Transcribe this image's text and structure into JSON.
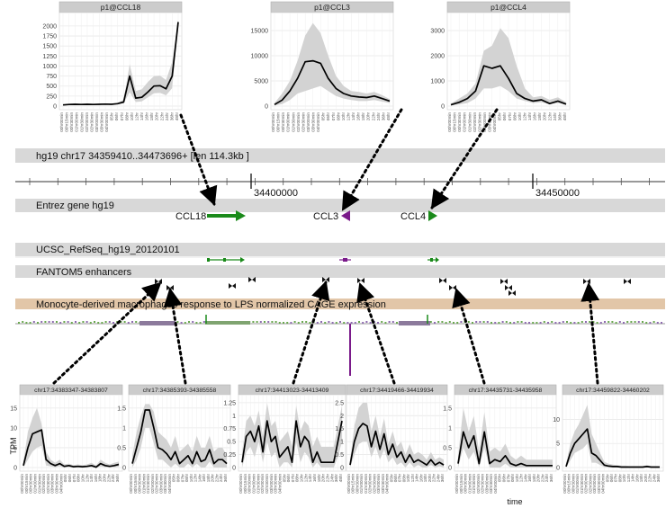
{
  "track_header": "hg19 chr17 34359410..34473696+ [len 114.3kb ]",
  "ruler": {
    "labels": [
      "34400000",
      "34450000"
    ]
  },
  "tracks": {
    "entrez": "Entrez gene hg19",
    "refseq": "UCSC_RefSeq_hg19_20120101",
    "enhancers": "FANTOM5 enhancers",
    "cage": "Monocyte-derived macrophages response to LPS normalized CAGE expression"
  },
  "genes": [
    {
      "name": "CCL18",
      "strand": "+"
    },
    {
      "name": "CCL3",
      "strand": "-"
    },
    {
      "name": "CCL4",
      "strand": "+"
    }
  ],
  "time_labels": [
    "00hr00min",
    "00hr15min",
    "00hr30min",
    "01hr00min",
    "01hr30min",
    "02hr00min",
    "02hr30min",
    "03hr00min",
    "03hr30min",
    "04hr00min",
    "05hr",
    "06hr",
    "07hr",
    "08hr",
    "10hr",
    "12hr",
    "14hr",
    "16hr",
    "18hr",
    "20hr",
    "22hr",
    "24hr",
    "36hr",
    "48hr"
  ],
  "common_axes": {
    "ylabel": "TPM",
    "xlabel": "time"
  },
  "chart_data": [
    {
      "type": "line",
      "title": "p1@CCL18",
      "yticks": [
        0,
        250,
        500,
        750,
        1000,
        1250,
        1500,
        1750,
        2000
      ],
      "ylim": [
        0,
        2200
      ],
      "values": [
        30,
        40,
        45,
        40,
        45,
        40,
        45,
        50,
        45,
        60,
        100,
        750,
        200,
        220,
        350,
        500,
        510,
        430,
        750,
        2100
      ],
      "band_low": [
        20,
        30,
        35,
        30,
        35,
        30,
        35,
        40,
        35,
        45,
        70,
        350,
        100,
        120,
        220,
        320,
        330,
        270,
        450,
        2050
      ],
      "band_high": [
        45,
        55,
        60,
        55,
        60,
        55,
        60,
        65,
        60,
        80,
        160,
        1050,
        380,
        420,
        600,
        750,
        760,
        650,
        1100,
        2150
      ]
    },
    {
      "type": "line",
      "title": "p1@CCL3",
      "yticks": [
        0,
        5000,
        10000,
        15000
      ],
      "ylim": [
        0,
        17500
      ],
      "values": [
        300,
        1200,
        3000,
        5500,
        8800,
        9000,
        8500,
        5500,
        3500,
        2500,
        2000,
        1800,
        1700,
        2000,
        1500,
        1000
      ],
      "band_low": [
        100,
        400,
        1200,
        2500,
        3000,
        3500,
        4000,
        3000,
        2000,
        1500,
        1200,
        1000,
        1000,
        1200,
        900,
        600
      ],
      "band_high": [
        600,
        2500,
        5000,
        9000,
        14000,
        16500,
        14500,
        10000,
        6000,
        4000,
        3000,
        2800,
        2500,
        2800,
        2200,
        1400
      ]
    },
    {
      "type": "line",
      "title": "p1@CCL4",
      "yticks": [
        0,
        1000,
        2000,
        3000
      ],
      "ylim": [
        0,
        3500
      ],
      "values": [
        50,
        150,
        300,
        600,
        1600,
        1500,
        1600,
        1100,
        500,
        300,
        200,
        250,
        100,
        200,
        80
      ],
      "band_low": [
        20,
        60,
        120,
        300,
        700,
        700,
        800,
        600,
        300,
        200,
        120,
        150,
        60,
        120,
        40
      ],
      "band_high": [
        100,
        300,
        500,
        900,
        2200,
        2400,
        3100,
        2700,
        1600,
        700,
        350,
        400,
        250,
        350,
        150
      ]
    },
    {
      "type": "line",
      "title": "chr17:34383347-34383807",
      "yticks": [
        0,
        5,
        10,
        15
      ],
      "ylim": [
        0,
        17
      ],
      "values": [
        0.5,
        5,
        8.5,
        9,
        9.5,
        2,
        1,
        0.5,
        1,
        0.3,
        0.5,
        0.2,
        0.3,
        0.2,
        0.3,
        0.5,
        0.1,
        1,
        0.5,
        0.3,
        0.5,
        0.8
      ],
      "band_low": [
        0,
        2,
        4,
        5,
        5.5,
        0.5,
        0.3,
        0.1,
        0.3,
        0,
        0.1,
        0,
        0.1,
        0,
        0.1,
        0.1,
        0,
        0.3,
        0.1,
        0.1,
        0.1,
        0.2
      ],
      "band_high": [
        1.5,
        9,
        12.5,
        15,
        11,
        4,
        2,
        1.2,
        2,
        0.8,
        1,
        0.6,
        0.8,
        0.6,
        0.8,
        1.2,
        0.5,
        2,
        1.2,
        0.8,
        1.2,
        1.5
      ]
    },
    {
      "type": "line",
      "title": "chr17:34385393-34385558",
      "yticks": [
        0,
        0.5,
        1,
        1.5
      ],
      "ylim": [
        0,
        1.7
      ],
      "values": [
        0.1,
        0.5,
        0.9,
        1.45,
        1.45,
        1.0,
        0.5,
        0.45,
        0.35,
        0.2,
        0.4,
        0.1,
        0.2,
        0.3,
        0.1,
        0.4,
        0.15,
        0.2,
        0.45,
        0.1,
        0.2,
        0.2,
        0.1
      ],
      "band_low": [
        0,
        0.2,
        0.5,
        1.0,
        1.0,
        0.6,
        0.2,
        0.2,
        0.1,
        0,
        0.1,
        0,
        0,
        0.1,
        0,
        0.1,
        0,
        0,
        0.15,
        0,
        0,
        0,
        0
      ],
      "band_high": [
        0.3,
        0.9,
        1.3,
        1.6,
        1.6,
        1.4,
        0.9,
        0.8,
        0.7,
        0.5,
        0.8,
        0.4,
        0.5,
        0.6,
        0.4,
        0.8,
        0.5,
        0.5,
        0.8,
        0.4,
        0.5,
        0.5,
        0.3
      ]
    },
    {
      "type": "line",
      "title": "chr17:34413023-34413409",
      "yticks": [
        0,
        0.25,
        0.5,
        0.75,
        1,
        1.25
      ],
      "ylim": [
        0,
        1.3
      ],
      "values": [
        0.1,
        0.6,
        0.7,
        0.5,
        0.8,
        0.3,
        0.9,
        0.5,
        0.6,
        0.2,
        0.3,
        0.4,
        0.1,
        0.9,
        0.4,
        0.6,
        0.5,
        0.1,
        0.3,
        0.1,
        0.1,
        0.1,
        0.1,
        0.5,
        0.9
      ],
      "band_low": [
        0,
        0.3,
        0.4,
        0.2,
        0.5,
        0.1,
        0.5,
        0.2,
        0.3,
        0,
        0.1,
        0.1,
        0,
        0.5,
        0.1,
        0.3,
        0.2,
        0,
        0.1,
        0,
        0,
        0,
        0,
        0.2,
        0.5
      ],
      "band_high": [
        0.3,
        0.9,
        1.0,
        0.8,
        1.1,
        0.6,
        1.25,
        0.8,
        0.9,
        0.5,
        0.6,
        0.7,
        0.4,
        1.2,
        0.7,
        0.9,
        0.8,
        0.4,
        0.6,
        0.4,
        0.4,
        0.4,
        0.4,
        0.8,
        1.2
      ]
    },
    {
      "type": "line",
      "title": "chr17:34419466-34419934",
      "yticks": [
        0,
        0.5,
        1,
        1.5,
        2,
        2.5
      ],
      "ylim": [
        0,
        2.6
      ],
      "values": [
        0.1,
        1.0,
        1.5,
        1.7,
        1.6,
        0.8,
        1.4,
        0.7,
        1.3,
        0.5,
        0.9,
        0.4,
        0.6,
        0.2,
        0.5,
        0.2,
        0.3,
        0.2,
        0.1,
        0.3,
        0.1,
        0.2,
        0.1
      ],
      "band_low": [
        0,
        0.5,
        0.9,
        1.0,
        1.0,
        0.4,
        0.8,
        0.3,
        0.7,
        0.2,
        0.4,
        0.1,
        0.2,
        0,
        0.2,
        0,
        0.1,
        0,
        0,
        0.1,
        0,
        0.05,
        0
      ],
      "band_high": [
        0.3,
        1.6,
        2.3,
        2.5,
        2.5,
        1.4,
        2.0,
        1.2,
        1.9,
        0.9,
        1.4,
        0.8,
        1.0,
        0.5,
        0.9,
        0.5,
        0.6,
        0.5,
        0.3,
        0.6,
        0.3,
        0.4,
        0.3
      ]
    },
    {
      "type": "line",
      "title": "chr17:34435731-34435958",
      "yticks": [
        0,
        0.5,
        1,
        1.5
      ],
      "ylim": [
        0,
        1.7
      ],
      "values": [
        0.1,
        0.9,
        0.5,
        0.8,
        0.1,
        0.9,
        0.1,
        0.2,
        0.15,
        0.3,
        0.1,
        0.05,
        0.1,
        0.05,
        0.05,
        0.05,
        0.05,
        0.05,
        0.05
      ],
      "band_low": [
        0,
        0.5,
        0.2,
        0.4,
        0,
        0.5,
        0,
        0,
        0,
        0.1,
        0,
        0,
        0,
        0,
        0,
        0,
        0,
        0,
        0
      ],
      "band_high": [
        0.3,
        1.5,
        0.9,
        1.3,
        0.4,
        1.4,
        0.4,
        0.5,
        0.4,
        0.6,
        0.3,
        0.2,
        0.3,
        0.2,
        0.2,
        0.2,
        0.2,
        0.2,
        0.2
      ]
    },
    {
      "type": "line",
      "title": "chr17:34459822-34460202",
      "yticks": [
        0,
        5,
        10
      ],
      "ylim": [
        0,
        14
      ],
      "values": [
        0.2,
        3,
        5,
        6,
        7,
        8,
        3,
        2.5,
        1.5,
        0.5,
        0.3,
        0.2,
        0.2,
        0.1,
        0.1,
        0.1,
        0.1,
        0.1,
        0.1,
        0.2,
        0.1,
        0.1,
        0.1
      ],
      "band_low": [
        0,
        1.5,
        3,
        3.5,
        4,
        5,
        1,
        1,
        0.5,
        0.1,
        0.1,
        0,
        0,
        0,
        0,
        0,
        0,
        0,
        0,
        0,
        0,
        0,
        0
      ],
      "band_high": [
        0.8,
        5,
        7.5,
        9,
        11,
        13,
        7,
        5,
        3,
        1.2,
        0.8,
        0.6,
        0.5,
        0.4,
        0.4,
        0.3,
        0.3,
        0.3,
        0.3,
        0.5,
        0.3,
        0.3,
        0.3
      ]
    }
  ]
}
